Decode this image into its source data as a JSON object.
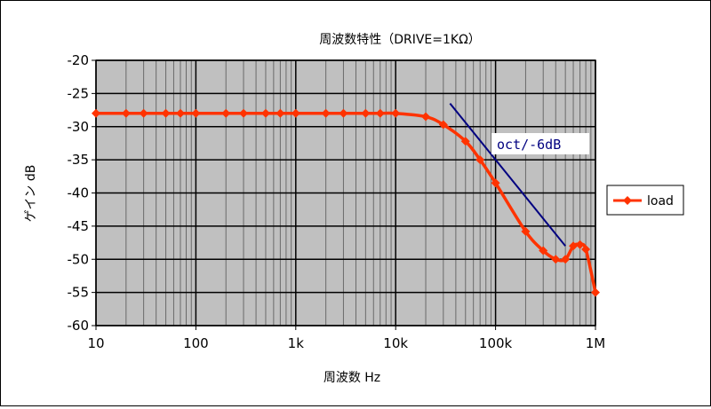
{
  "chart_data": {
    "type": "line",
    "title": "周波数特性（DRIVE=1KΩ）",
    "xlabel": "周波数 Hz",
    "ylabel": "ゲイン dB",
    "xscale": "log",
    "xlim": [
      10,
      1000000
    ],
    "ylim": [
      -60,
      -20
    ],
    "x_tick_labels": [
      "10",
      "100",
      "1k",
      "10k",
      "100k",
      "1M"
    ],
    "y_ticks": [
      -20,
      -25,
      -30,
      -35,
      -40,
      -45,
      -50,
      -55,
      -60
    ],
    "grid": true,
    "legend_position": "right",
    "series": [
      {
        "name": "load",
        "color": "#ff3300",
        "marker": "diamond",
        "points": [
          [
            10,
            -28
          ],
          [
            20,
            -28
          ],
          [
            30,
            -28
          ],
          [
            50,
            -28
          ],
          [
            70,
            -28
          ],
          [
            100,
            -28
          ],
          [
            200,
            -28
          ],
          [
            300,
            -28
          ],
          [
            500,
            -28
          ],
          [
            700,
            -28
          ],
          [
            1000,
            -28
          ],
          [
            2000,
            -28
          ],
          [
            3000,
            -28
          ],
          [
            5000,
            -28
          ],
          [
            7000,
            -28
          ],
          [
            10000,
            -28
          ],
          [
            20000,
            -28.5
          ],
          [
            30000,
            -29.7
          ],
          [
            50000,
            -32.2
          ],
          [
            70000,
            -35
          ],
          [
            100000,
            -38.5
          ],
          [
            200000,
            -45.8
          ],
          [
            300000,
            -48.7
          ],
          [
            400000,
            -50
          ],
          [
            500000,
            -50
          ],
          [
            600000,
            -48
          ],
          [
            700000,
            -47.8
          ],
          [
            800000,
            -48.5
          ],
          [
            1000000,
            -55
          ]
        ]
      }
    ],
    "annotations": [
      {
        "text": "oct/-6dB",
        "color": "#000080",
        "line_from": [
          35000,
          -26.5
        ],
        "line_to": [
          500000,
          -48
        ]
      }
    ]
  }
}
